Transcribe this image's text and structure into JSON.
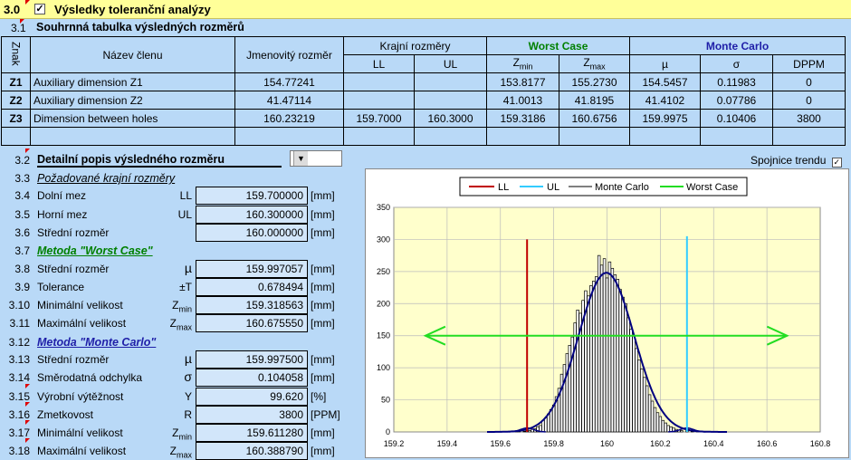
{
  "s30": {
    "num": "3.0",
    "title": "Výsledky toleranční analýzy"
  },
  "s31": {
    "num": "3.1",
    "title": "Souhrnná tabulka výsledných rozměrů"
  },
  "table": {
    "h_znak": "Znak",
    "h_name": "Název členu",
    "h_nom": "Jmenovitý rozměr",
    "h_limits": "Krajní rozměry",
    "h_ll": "LL",
    "h_ul": "UL",
    "h_wc": "Worst Case",
    "h_mc": "Monte Carlo",
    "h_zmin_z": "Z",
    "h_zmin_s": "min",
    "h_zmax_z": "Z",
    "h_zmax_s": "max",
    "h_mu": "µ",
    "h_sigma": "σ",
    "h_dppm": "DPPM",
    "rows": [
      {
        "z": "Z1",
        "name": "Auxiliary dimension Z1",
        "nom": "154.77241",
        "ll": "",
        "ul": "",
        "zmin": "153.8177",
        "zmax": "155.2730",
        "mu": "154.5457",
        "sigma": "0.11983",
        "dppm": "0"
      },
      {
        "z": "Z2",
        "name": "Auxiliary dimension Z2",
        "nom": "41.47114",
        "ll": "",
        "ul": "",
        "zmin": "41.0013",
        "zmax": "41.8195",
        "mu": "41.4102",
        "sigma": "0.07786",
        "dppm": "0"
      },
      {
        "z": "Z3",
        "name": "Dimension between holes",
        "nom": "160.23219",
        "ll": "159.7000",
        "ul": "160.3000",
        "zmin": "159.3186",
        "zmax": "160.6756",
        "mu": "159.9975",
        "sigma": "0.10406",
        "dppm": "3800"
      }
    ]
  },
  "s32": {
    "num": "3.2",
    "title": "Detailní popis výsledného rozměru",
    "selected": "Z3",
    "trend_label": "Spojnice trendu"
  },
  "details": {
    "n33": "3.3",
    "req": "Požadované krajní rozměry",
    "n34": "3.4",
    "dol": "Dolní mez",
    "dol_sym": "LL",
    "dol_val": "159.700000",
    "dol_u": "[mm]",
    "n35": "3.5",
    "hor": "Horní mez",
    "hor_sym": "UL",
    "hor_val": "160.300000",
    "hor_u": "[mm]",
    "n36": "3.6",
    "str": "Střední rozměr",
    "str_val": "160.000000",
    "str_u": "[mm]",
    "n37": "3.7",
    "wc": "Metoda \"Worst Case\"",
    "n38": "3.8",
    "wc_str": "Střední rozměr",
    "wc_str_sym": "µ",
    "wc_str_val": "159.997057",
    "wc_str_u": "[mm]",
    "n39": "3.9",
    "wc_tol": "Tolerance",
    "wc_tol_sym": "±T",
    "wc_tol_val": "0.678494",
    "wc_tol_u": "[mm]",
    "n310": "3.10",
    "wc_min": "Minimální velikost",
    "wc_min_sym": "Z",
    "wc_min_sub": "min",
    "wc_min_val": "159.318563",
    "wc_min_u": "[mm]",
    "n311": "3.11",
    "wc_max": "Maximální velikost",
    "wc_max_sym": "Z",
    "wc_max_sub": "max",
    "wc_max_val": "160.675550",
    "wc_max_u": "[mm]",
    "n312": "3.12",
    "mc": "Metoda \"Monte Carlo\"",
    "n313": "3.13",
    "mc_str": "Střední rozměr",
    "mc_str_sym": "µ",
    "mc_str_val": "159.997500",
    "mc_str_u": "[mm]",
    "n314": "3.14",
    "mc_sd": "Směrodatná odchylka",
    "mc_sd_sym": "σ",
    "mc_sd_val": "0.104058",
    "mc_sd_u": "[mm]",
    "n315": "3.15",
    "mc_yield": "Výrobní výtěžnost",
    "mc_yield_sym": "Y",
    "mc_yield_val": "99.620",
    "mc_yield_u": "[%]",
    "n316": "3.16",
    "mc_rej": "Zmetkovost",
    "mc_rej_sym": "R",
    "mc_rej_val": "3800",
    "mc_rej_u": "[PPM]",
    "n317": "3.17",
    "mc_min": "Minimální velikost",
    "mc_min_sym": "Z",
    "mc_min_sub": "min",
    "mc_min_val": "159.611280",
    "mc_min_u": "[mm]",
    "n318": "3.18",
    "mc_max": "Maximální velikost",
    "mc_max_sym": "Z",
    "mc_max_sub": "max",
    "mc_max_val": "160.388790",
    "mc_max_u": "[mm]"
  },
  "chart_data": {
    "type": "bar",
    "legend": [
      "LL",
      "UL",
      "Monte Carlo",
      "Worst Case"
    ],
    "colors": {
      "LL": "#c00000",
      "UL": "#33ccff",
      "MonteCarlo": "#000080",
      "WorstCase": "#22dd22",
      "bars": "#000000"
    },
    "xlim": [
      159.2,
      160.8
    ],
    "ylim": [
      0,
      350
    ],
    "xticks": [
      "159.2",
      "159.4",
      "159.6",
      "159.8",
      "160",
      "160.2",
      "160.4",
      "160.6",
      "160.8"
    ],
    "yticks": [
      "0",
      "50",
      "100",
      "150",
      "200",
      "250",
      "300",
      "350"
    ],
    "ll": 159.7,
    "ul": 160.3,
    "ll_height": 300,
    "ul_height": 305,
    "worst_case": {
      "min": 159.318563,
      "max": 160.67555,
      "y": 150
    },
    "mu": 159.9975,
    "sigma": 0.104058,
    "peak": 248,
    "hist_bin_width": 0.01,
    "hist": [
      [
        159.66,
        1
      ],
      [
        159.67,
        1
      ],
      [
        159.69,
        1
      ],
      [
        159.7,
        2
      ],
      [
        159.71,
        2
      ],
      [
        159.72,
        4
      ],
      [
        159.73,
        5
      ],
      [
        159.74,
        8
      ],
      [
        159.75,
        10
      ],
      [
        159.76,
        18
      ],
      [
        159.77,
        22
      ],
      [
        159.78,
        28
      ],
      [
        159.79,
        35
      ],
      [
        159.8,
        42
      ],
      [
        159.81,
        55
      ],
      [
        159.82,
        68
      ],
      [
        159.83,
        90
      ],
      [
        159.84,
        105
      ],
      [
        159.85,
        122
      ],
      [
        159.86,
        135
      ],
      [
        159.87,
        148
      ],
      [
        159.88,
        170
      ],
      [
        159.89,
        190
      ],
      [
        159.9,
        185
      ],
      [
        159.91,
        205
      ],
      [
        159.92,
        220
      ],
      [
        159.93,
        212
      ],
      [
        159.94,
        228
      ],
      [
        159.95,
        235
      ],
      [
        159.96,
        242
      ],
      [
        159.97,
        275
      ],
      [
        159.98,
        260
      ],
      [
        159.99,
        270
      ],
      [
        160.0,
        240
      ],
      [
        160.01,
        265
      ],
      [
        160.02,
        255
      ],
      [
        160.03,
        245
      ],
      [
        160.04,
        238
      ],
      [
        160.05,
        222
      ],
      [
        160.06,
        210
      ],
      [
        160.07,
        200
      ],
      [
        160.08,
        178
      ],
      [
        160.09,
        160
      ],
      [
        160.1,
        150
      ],
      [
        160.11,
        130
      ],
      [
        160.12,
        112
      ],
      [
        160.13,
        98
      ],
      [
        160.14,
        85
      ],
      [
        160.15,
        72
      ],
      [
        160.16,
        58
      ],
      [
        160.17,
        48
      ],
      [
        160.18,
        38
      ],
      [
        160.19,
        30
      ],
      [
        160.2,
        24
      ],
      [
        160.21,
        18
      ],
      [
        160.22,
        14
      ],
      [
        160.23,
        10
      ],
      [
        160.24,
        8
      ],
      [
        160.25,
        6
      ],
      [
        160.26,
        4
      ],
      [
        160.27,
        3
      ],
      [
        160.28,
        2
      ],
      [
        160.3,
        2
      ],
      [
        160.32,
        1
      ],
      [
        160.34,
        1
      ]
    ]
  }
}
